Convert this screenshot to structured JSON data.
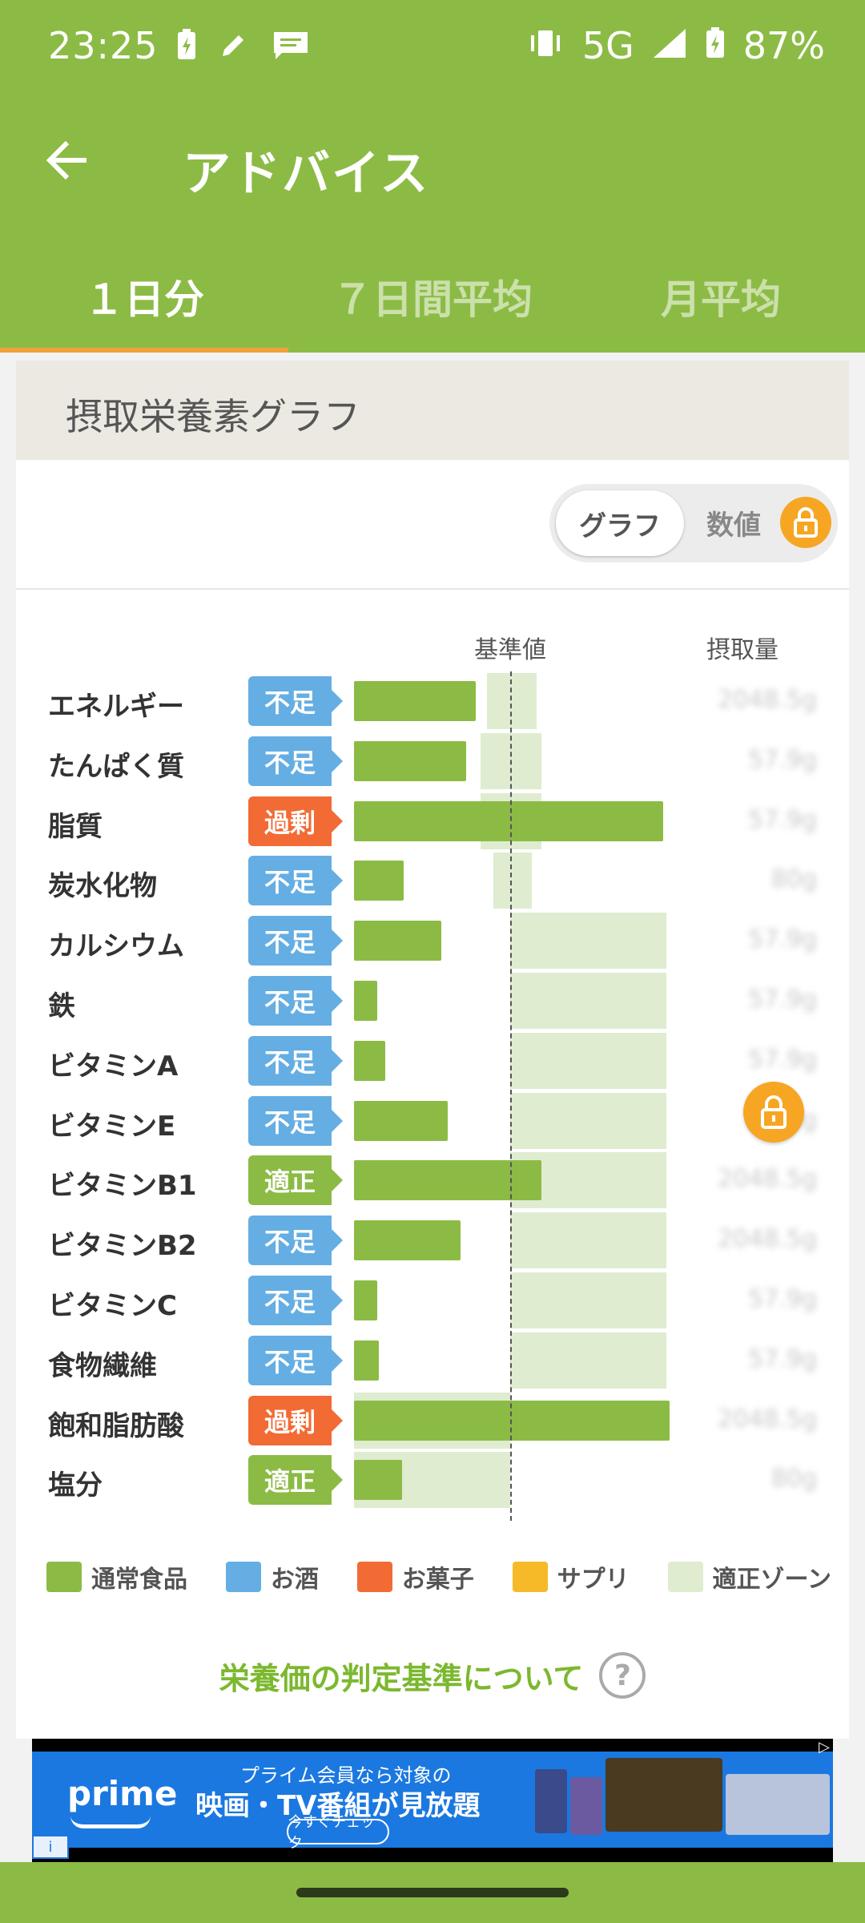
{
  "status_bar": {
    "time": "23:25",
    "network": "5G",
    "battery": "87%",
    "left_icons": [
      "battery-charging-icon",
      "pencil-icon",
      "message-icon"
    ],
    "right_icons": [
      "vibrate-icon",
      "signal-icon",
      "battery-icon"
    ]
  },
  "app_bar": {
    "title": "アドバイス",
    "back_icon": "arrow-left-icon"
  },
  "tabs": [
    {
      "label": "１日分",
      "active": true
    },
    {
      "label": "７日間平均",
      "active": false
    },
    {
      "label": "月平均",
      "active": false
    }
  ],
  "card": {
    "header": "摂取栄養素グラフ",
    "toggle": {
      "graph_label": "グラフ",
      "value_label": "数値",
      "value_locked": true
    }
  },
  "chart_data": {
    "type": "bar",
    "column_headers": {
      "reference": "基準値",
      "intake": "摂取量"
    },
    "rows": [
      {
        "name": "エネルギー",
        "status": "不足",
        "percent": 0.78,
        "zone": [
          0.85,
          1.17
        ]
      },
      {
        "name": "たんぱく質",
        "status": "不足",
        "percent": 0.72,
        "zone": [
          0.81,
          1.2
        ]
      },
      {
        "name": "脂質",
        "status": "過剰",
        "percent": 1.98,
        "zone": [
          0.81,
          1.2
        ]
      },
      {
        "name": "炭水化物",
        "status": "不足",
        "percent": 0.32,
        "zone": [
          0.89,
          1.14
        ]
      },
      {
        "name": "カルシウム",
        "status": "不足",
        "percent": 0.56,
        "zone": [
          1.0,
          2.0
        ]
      },
      {
        "name": "鉄",
        "status": "不足",
        "percent": 0.15,
        "zone": [
          1.0,
          2.0
        ]
      },
      {
        "name": "ビタミンA",
        "status": "不足",
        "percent": 0.2,
        "zone": [
          1.0,
          2.0
        ]
      },
      {
        "name": "ビタミンE",
        "status": "不足",
        "percent": 0.6,
        "zone": [
          1.0,
          2.0
        ]
      },
      {
        "name": "ビタミンB1",
        "status": "適正",
        "percent": 1.2,
        "zone": [
          1.0,
          2.0
        ]
      },
      {
        "name": "ビタミンB2",
        "status": "不足",
        "percent": 0.68,
        "zone": [
          1.0,
          2.0
        ]
      },
      {
        "name": "ビタミンC",
        "status": "不足",
        "percent": 0.15,
        "zone": [
          1.0,
          2.0
        ]
      },
      {
        "name": "食物繊維",
        "status": "不足",
        "percent": 0.16,
        "zone": [
          1.0,
          2.0
        ]
      },
      {
        "name": "飽和脂肪酸",
        "status": "過剰",
        "percent": 2.02,
        "zone": [
          0.0,
          1.0
        ]
      },
      {
        "name": "塩分",
        "status": "適正",
        "percent": 0.31,
        "zone": [
          0.0,
          1.0
        ]
      }
    ],
    "intake_values_obscured": [
      "2048.5g",
      "57.9g",
      "57.9g",
      "80g",
      "57.9g",
      "57.9g",
      "57.9g",
      "57.9g",
      "2048.5g",
      "2048.5g",
      "57.9g",
      "57.9g",
      "2048.5g",
      "80g"
    ],
    "intake_locked": true,
    "max_percent": 2.03
  },
  "legend": [
    {
      "label": "通常食品",
      "color": "#8cbb45"
    },
    {
      "label": "お酒",
      "color": "#65aee3"
    },
    {
      "label": "お菓子",
      "color": "#f26b35"
    },
    {
      "label": "サプリ",
      "color": "#f6b928"
    },
    {
      "label": "適正ゾーン",
      "color": "#dfecd0"
    }
  ],
  "criteria_link": "栄養価の判定基準について",
  "ad": {
    "brand": "prime",
    "line1": "プライム会員なら対象の",
    "line2": "映画・TV番組が見放題",
    "cta": "今すぐチェック"
  },
  "colors": {
    "accent": "#8cbb45",
    "tab_indicator": "#f0a13a",
    "lack": "#65aee3",
    "over": "#f26b35",
    "ok": "#8cbb45",
    "lock": "#f6a623"
  }
}
